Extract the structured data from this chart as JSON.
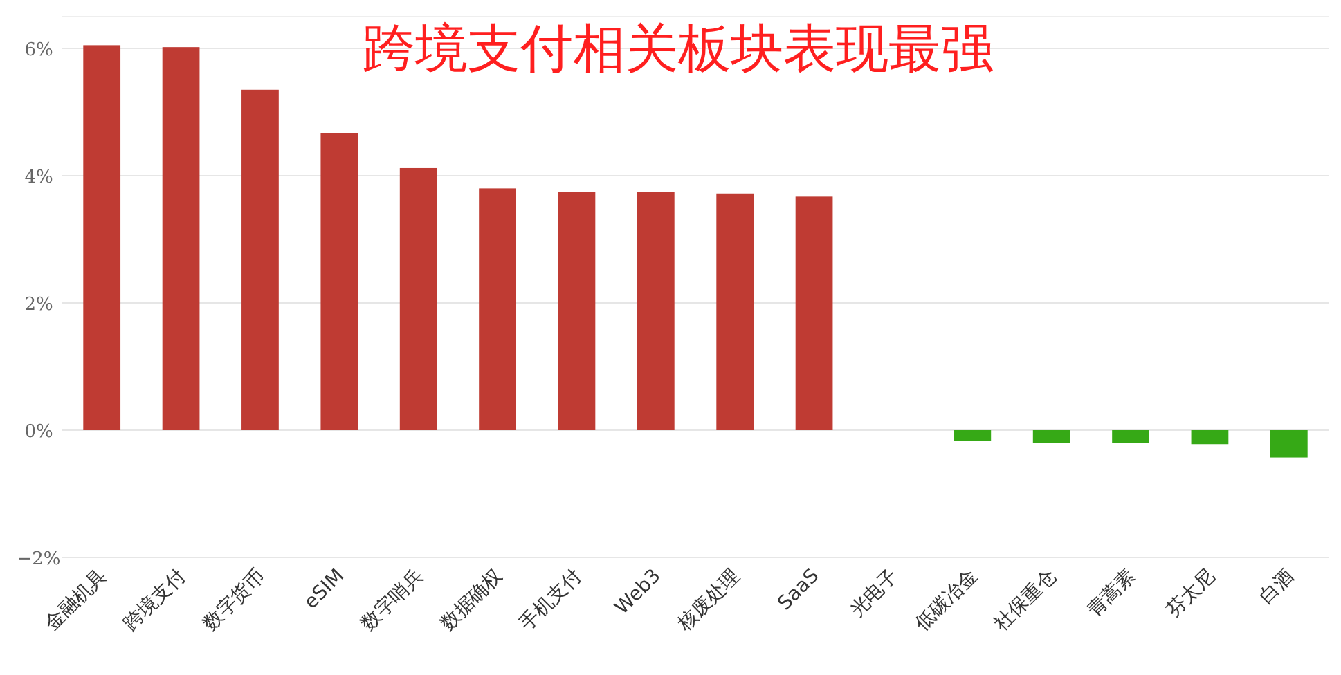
{
  "chart_data": {
    "type": "bar",
    "title": "跨境支付相关板块表现最强",
    "categories": [
      "金融机具",
      "跨境支付",
      "数字货币",
      "eSIM",
      "数字哨兵",
      "数据确权",
      "手机支付",
      "Web3",
      "核废处理",
      "SaaS",
      "光电子",
      "低碳冶金",
      "社保重仓",
      "青蒿素",
      "芬太尼",
      "白酒"
    ],
    "values": [
      6.05,
      6.02,
      5.35,
      4.67,
      4.12,
      3.8,
      3.75,
      3.75,
      3.72,
      3.67,
      0,
      -0.17,
      -0.2,
      -0.2,
      -0.22,
      -0.43
    ],
    "colors": [
      "#bf3b33",
      "#bf3b33",
      "#bf3b33",
      "#bf3b33",
      "#bf3b33",
      "#bf3b33",
      "#bf3b33",
      "#bf3b33",
      "#bf3b33",
      "#bf3b33",
      "#bf3b33",
      "#36a916",
      "#36a916",
      "#36a916",
      "#36a916",
      "#36a916"
    ],
    "ylim": [
      -2,
      6.5
    ],
    "yticks": [
      {
        "value": -2,
        "label": "−2%"
      },
      {
        "value": 0,
        "label": "0%"
      },
      {
        "value": 2,
        "label": "2%"
      },
      {
        "value": 4,
        "label": "4%"
      },
      {
        "value": 6,
        "label": "6%"
      }
    ],
    "grid": "y"
  }
}
